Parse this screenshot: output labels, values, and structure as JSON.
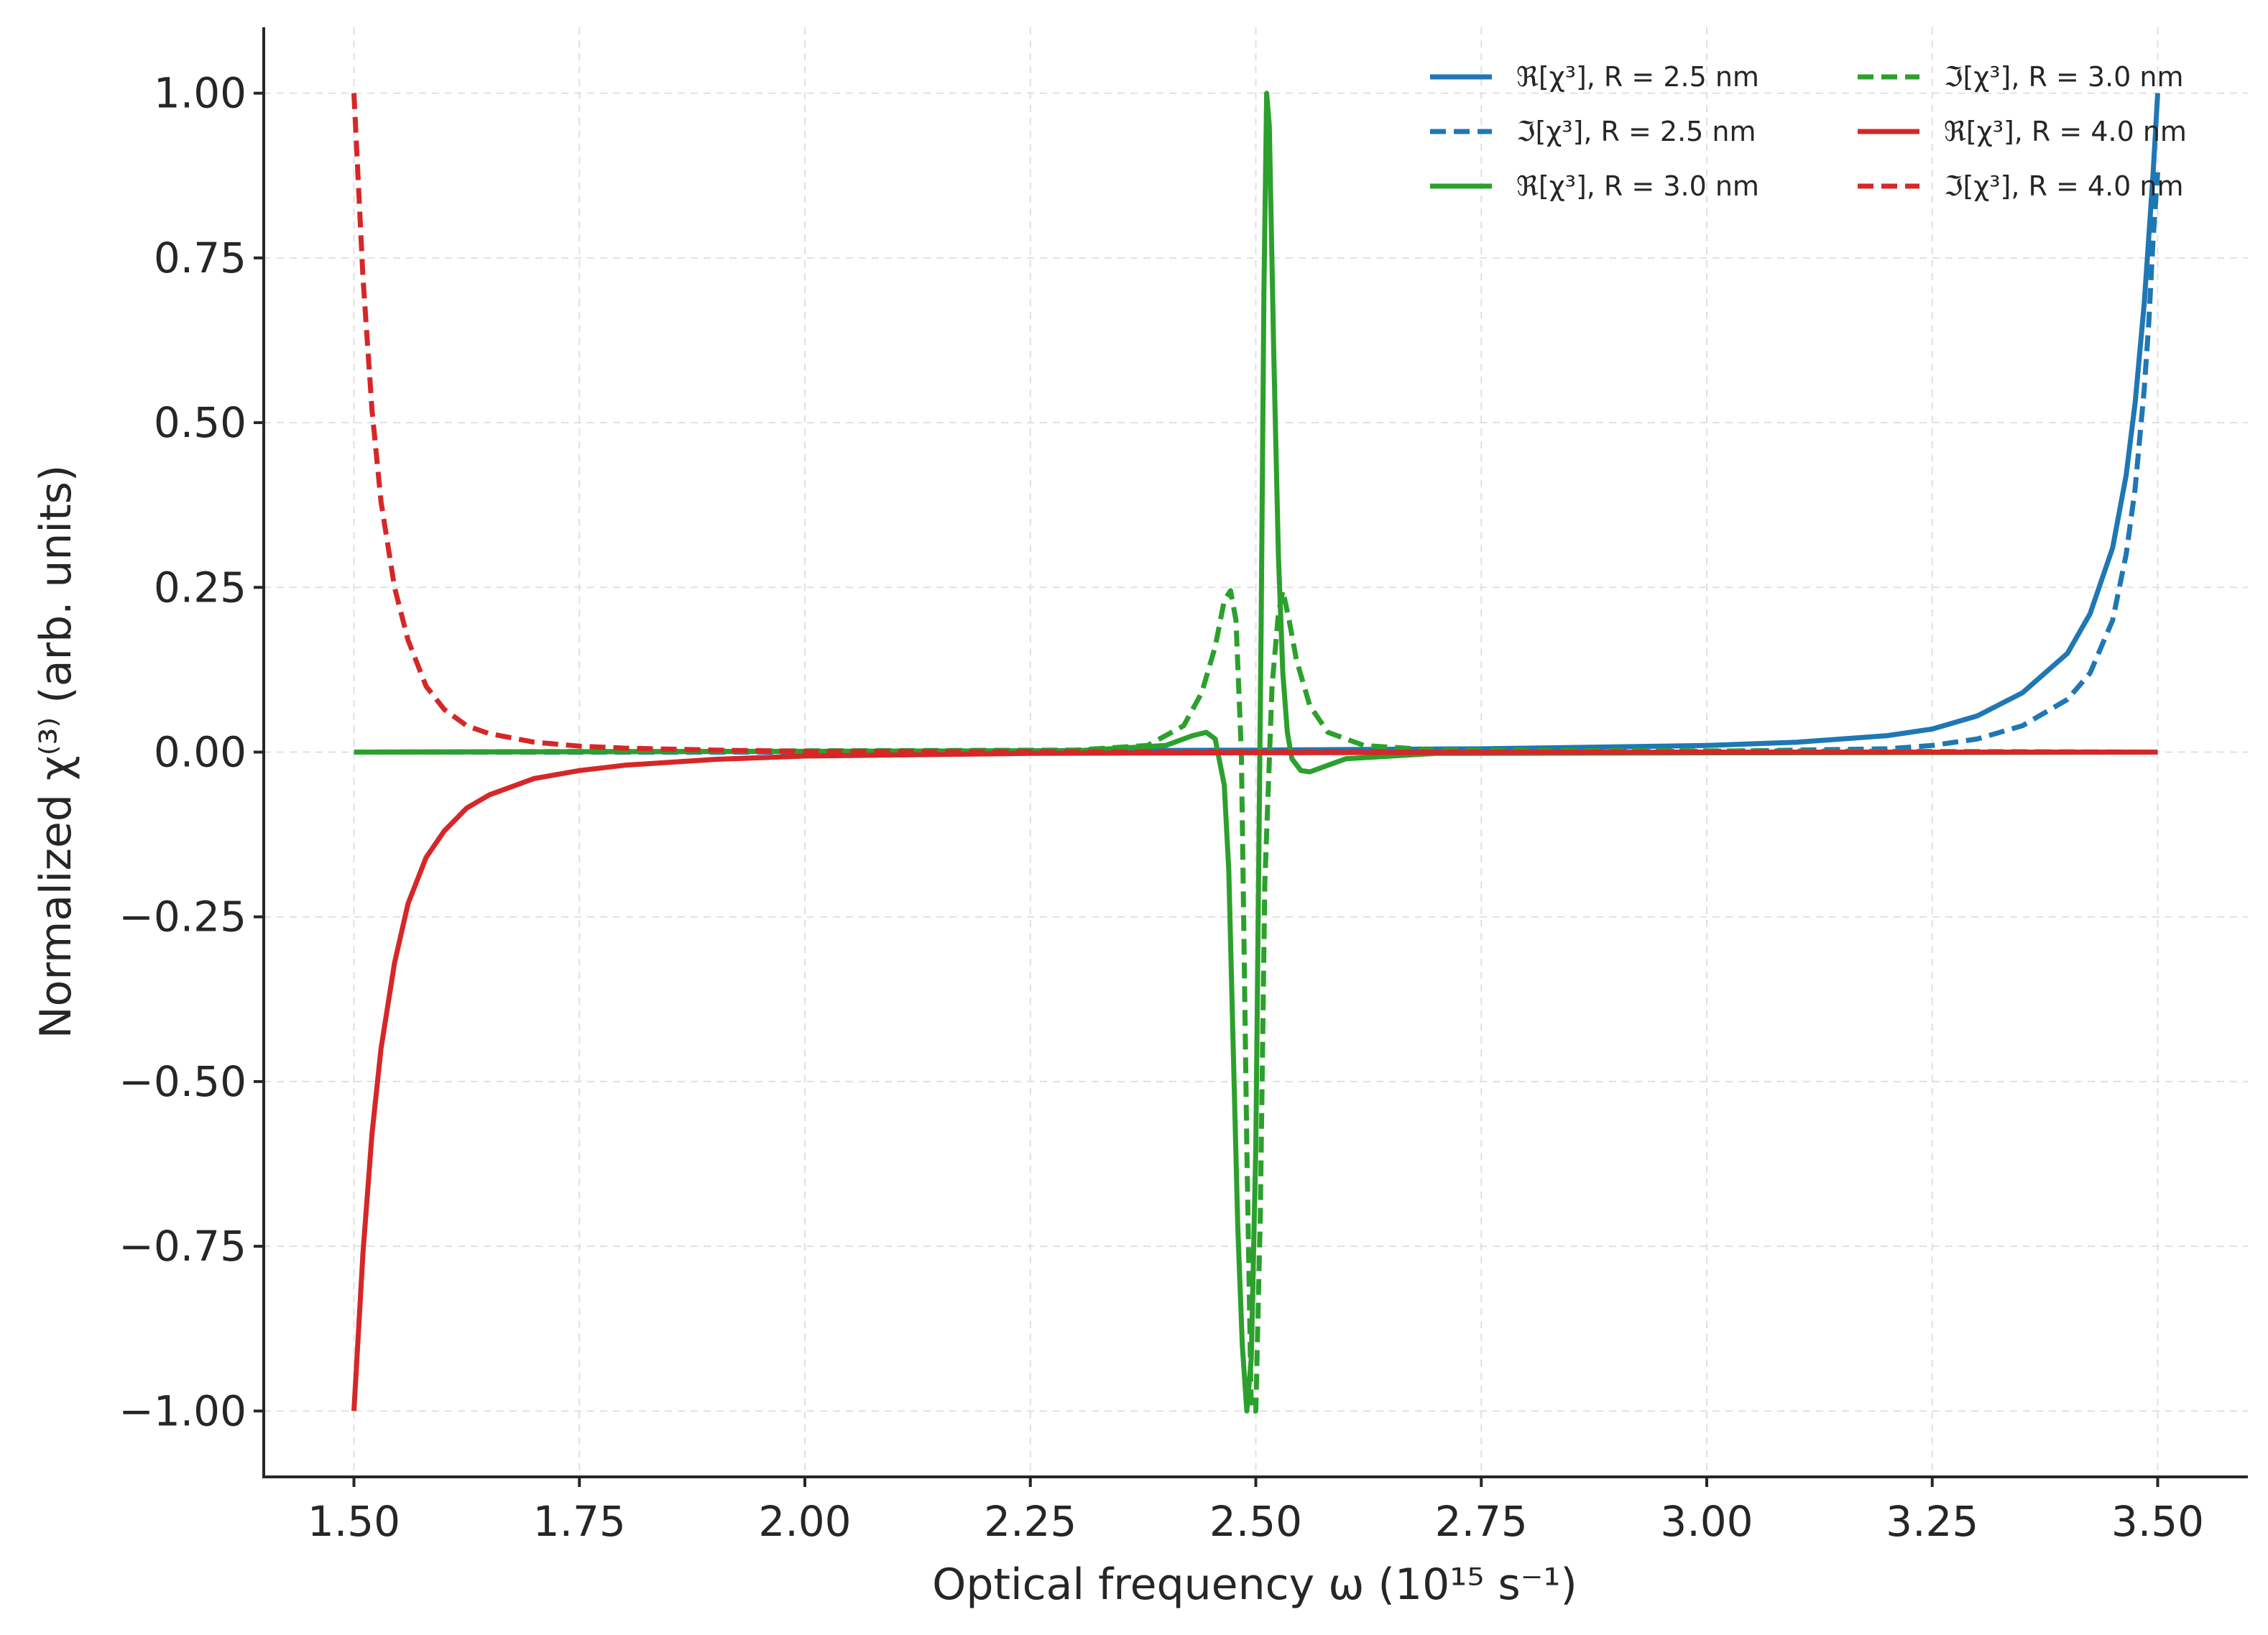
{
  "chart_data": {
    "type": "line",
    "xlabel": "Optical frequency ω (10¹⁵ s⁻¹)",
    "ylabel": "Normalized χ⁽³⁾ (arb. units)",
    "xlim": [
      1.4,
      3.6
    ],
    "ylim": [
      -1.1,
      1.1
    ],
    "x_ticks": [
      "1.50",
      "1.75",
      "2.00",
      "2.25",
      "2.50",
      "2.75",
      "3.00",
      "3.25",
      "3.50"
    ],
    "y_ticks": [
      "1.00",
      "0.75",
      "0.50",
      "0.25",
      "0.00",
      "−0.25",
      "−0.50",
      "−0.75",
      "−1.00"
    ],
    "grid": true,
    "legend_position": "top-right",
    "legend_columns": 2,
    "series": [
      {
        "name": "ℜ[χ³], R = 2.5 nm",
        "color": "#1f77b4",
        "linestyle": "solid",
        "points": [
          [
            1.5,
            0.0
          ],
          [
            2.0,
            0.001
          ],
          [
            2.5,
            0.003
          ],
          [
            2.75,
            0.005
          ],
          [
            3.0,
            0.01
          ],
          [
            3.1,
            0.015
          ],
          [
            3.2,
            0.025
          ],
          [
            3.25,
            0.035
          ],
          [
            3.3,
            0.055
          ],
          [
            3.35,
            0.09
          ],
          [
            3.4,
            0.15
          ],
          [
            3.425,
            0.21
          ],
          [
            3.45,
            0.31
          ],
          [
            3.465,
            0.42
          ],
          [
            3.475,
            0.53
          ],
          [
            3.485,
            0.68
          ],
          [
            3.49,
            0.78
          ],
          [
            3.495,
            0.88
          ],
          [
            3.5,
            1.0
          ]
        ]
      },
      {
        "name": "ℑ[χ³], R = 2.5 nm",
        "color": "#1f77b4",
        "linestyle": "dashed",
        "points": [
          [
            1.5,
            0.0
          ],
          [
            2.5,
            0.0
          ],
          [
            3.0,
            0.001
          ],
          [
            3.2,
            0.005
          ],
          [
            3.25,
            0.01
          ],
          [
            3.3,
            0.02
          ],
          [
            3.35,
            0.04
          ],
          [
            3.4,
            0.08
          ],
          [
            3.425,
            0.12
          ],
          [
            3.45,
            0.2
          ],
          [
            3.465,
            0.3
          ],
          [
            3.475,
            0.4
          ],
          [
            3.485,
            0.55
          ],
          [
            3.49,
            0.65
          ],
          [
            3.495,
            0.78
          ],
          [
            3.5,
            0.88
          ]
        ]
      },
      {
        "name": "ℜ[χ³], R = 3.0 nm",
        "color": "#2ca02c",
        "linestyle": "solid",
        "points": [
          [
            1.5,
            0.0
          ],
          [
            2.3,
            0.002
          ],
          [
            2.4,
            0.01
          ],
          [
            2.43,
            0.025
          ],
          [
            2.445,
            0.03
          ],
          [
            2.455,
            0.02
          ],
          [
            2.465,
            -0.05
          ],
          [
            2.47,
            -0.18
          ],
          [
            2.475,
            -0.45
          ],
          [
            2.48,
            -0.72
          ],
          [
            2.485,
            -0.9
          ],
          [
            2.49,
            -1.0
          ],
          [
            2.495,
            -0.92
          ],
          [
            2.5,
            -0.6
          ],
          [
            2.503,
            -0.2
          ],
          [
            2.506,
            0.2
          ],
          [
            2.509,
            0.7
          ],
          [
            2.512,
            1.0
          ],
          [
            2.515,
            0.95
          ],
          [
            2.52,
            0.6
          ],
          [
            2.525,
            0.3
          ],
          [
            2.53,
            0.12
          ],
          [
            2.535,
            0.03
          ],
          [
            2.54,
            -0.01
          ],
          [
            2.55,
            -0.028
          ],
          [
            2.56,
            -0.03
          ],
          [
            2.58,
            -0.02
          ],
          [
            2.6,
            -0.01
          ],
          [
            2.7,
            -0.002
          ],
          [
            3.5,
            0.0
          ]
        ]
      },
      {
        "name": "ℑ[χ³], R = 3.0 nm",
        "color": "#2ca02c",
        "linestyle": "dashed",
        "points": [
          [
            1.5,
            0.0
          ],
          [
            2.3,
            0.003
          ],
          [
            2.38,
            0.01
          ],
          [
            2.42,
            0.04
          ],
          [
            2.44,
            0.09
          ],
          [
            2.455,
            0.16
          ],
          [
            2.465,
            0.23
          ],
          [
            2.472,
            0.245
          ],
          [
            2.478,
            0.2
          ],
          [
            2.484,
            0.0
          ],
          [
            2.49,
            -0.6
          ],
          [
            2.495,
            -1.0
          ],
          [
            2.5,
            -1.0
          ],
          [
            2.505,
            -0.7
          ],
          [
            2.51,
            -0.2
          ],
          [
            2.518,
            0.1
          ],
          [
            2.525,
            0.21
          ],
          [
            2.53,
            0.245
          ],
          [
            2.537,
            0.2
          ],
          [
            2.545,
            0.14
          ],
          [
            2.56,
            0.07
          ],
          [
            2.58,
            0.03
          ],
          [
            2.62,
            0.01
          ],
          [
            2.7,
            0.003
          ],
          [
            3.5,
            0.0
          ]
        ]
      },
      {
        "name": "ℜ[χ³], R = 4.0 nm",
        "color": "#d62728",
        "linestyle": "solid",
        "points": [
          [
            1.5,
            -1.0
          ],
          [
            1.505,
            -0.88
          ],
          [
            1.51,
            -0.76
          ],
          [
            1.52,
            -0.58
          ],
          [
            1.53,
            -0.45
          ],
          [
            1.545,
            -0.32
          ],
          [
            1.56,
            -0.23
          ],
          [
            1.58,
            -0.16
          ],
          [
            1.6,
            -0.12
          ],
          [
            1.625,
            -0.085
          ],
          [
            1.65,
            -0.065
          ],
          [
            1.7,
            -0.04
          ],
          [
            1.75,
            -0.028
          ],
          [
            1.8,
            -0.02
          ],
          [
            1.9,
            -0.011
          ],
          [
            2.0,
            -0.006
          ],
          [
            2.25,
            -0.002
          ],
          [
            2.5,
            -0.001
          ],
          [
            3.0,
            0.0
          ],
          [
            3.5,
            0.0
          ]
        ]
      },
      {
        "name": "ℑ[χ³], R = 4.0 nm",
        "color": "#d62728",
        "linestyle": "dashed",
        "points": [
          [
            1.5,
            1.0
          ],
          [
            1.505,
            0.86
          ],
          [
            1.51,
            0.72
          ],
          [
            1.52,
            0.52
          ],
          [
            1.53,
            0.38
          ],
          [
            1.545,
            0.25
          ],
          [
            1.56,
            0.17
          ],
          [
            1.58,
            0.1
          ],
          [
            1.6,
            0.065
          ],
          [
            1.625,
            0.04
          ],
          [
            1.65,
            0.028
          ],
          [
            1.7,
            0.015
          ],
          [
            1.75,
            0.009
          ],
          [
            1.8,
            0.006
          ],
          [
            1.9,
            0.003
          ],
          [
            2.0,
            0.001
          ],
          [
            2.5,
            0.0
          ],
          [
            3.5,
            0.0
          ]
        ]
      }
    ]
  }
}
